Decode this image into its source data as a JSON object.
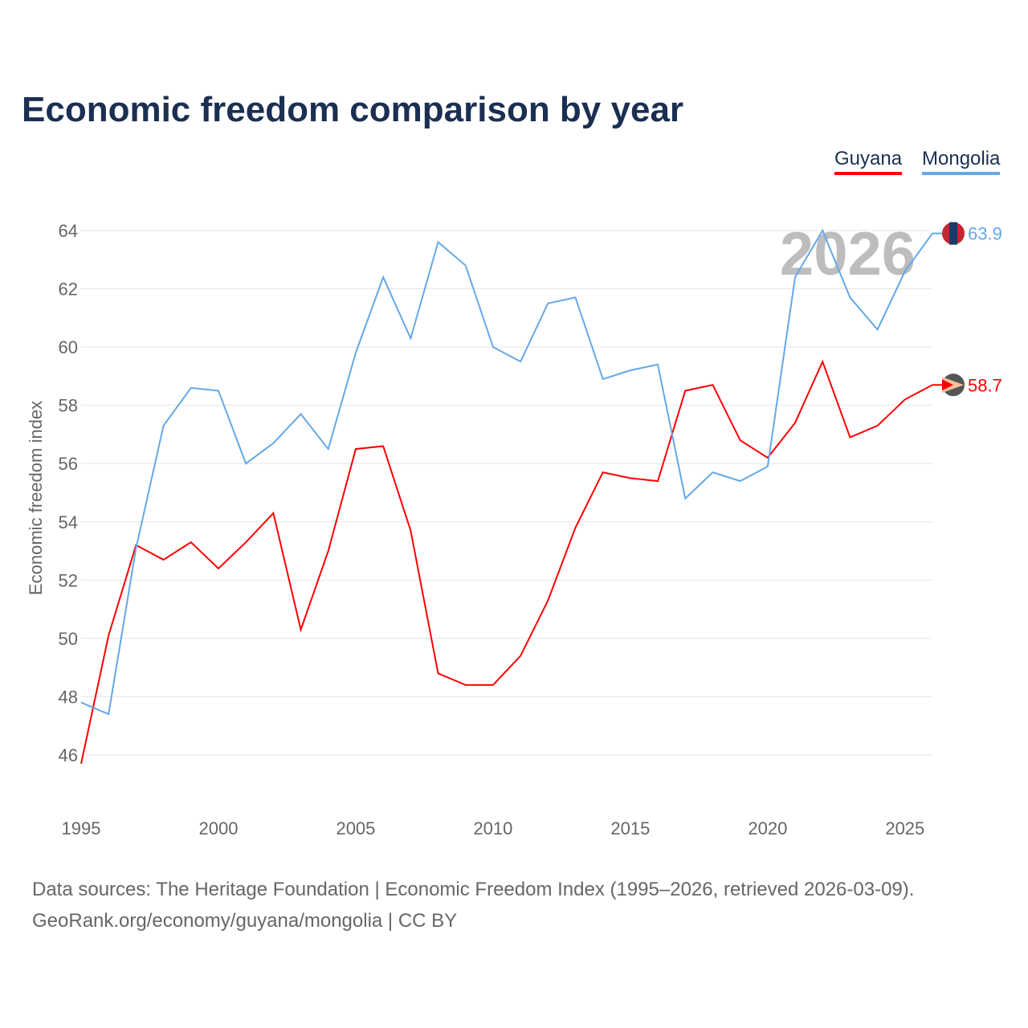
{
  "chart_data": {
    "type": "line",
    "title": "Economic freedom comparison by year",
    "ylabel": "Economic freedom index",
    "xlabel": "",
    "ylim": [
      45,
      65
    ],
    "xlim": [
      1995,
      2026
    ],
    "yticks": [
      46,
      48,
      50,
      52,
      54,
      56,
      58,
      60,
      62,
      64
    ],
    "xticks": [
      1995,
      2000,
      2005,
      2010,
      2015,
      2020,
      2025
    ],
    "grid": true,
    "legend_position": "top-right",
    "watermark_year": "2026",
    "x": [
      1995,
      1996,
      1997,
      1998,
      1999,
      2000,
      2001,
      2002,
      2003,
      2004,
      2005,
      2006,
      2007,
      2008,
      2009,
      2010,
      2011,
      2012,
      2013,
      2014,
      2015,
      2016,
      2017,
      2018,
      2019,
      2020,
      2021,
      2022,
      2023,
      2024,
      2025,
      2026
    ],
    "series": [
      {
        "name": "Guyana",
        "color": "#ff0000",
        "end_label": "58.7",
        "values": [
          45.7,
          50.1,
          53.2,
          52.7,
          53.3,
          52.4,
          53.3,
          54.3,
          50.3,
          53.0,
          56.5,
          56.6,
          53.7,
          48.8,
          48.4,
          48.4,
          49.4,
          51.3,
          53.8,
          55.7,
          55.5,
          55.4,
          58.5,
          58.7,
          56.8,
          56.2,
          57.4,
          59.5,
          56.9,
          57.3,
          58.2,
          58.7
        ]
      },
      {
        "name": "Mongolia",
        "color": "#64a8e8",
        "end_label": "63.9",
        "values": [
          47.8,
          47.4,
          53.1,
          57.3,
          58.6,
          58.5,
          56.0,
          56.7,
          57.7,
          56.5,
          59.8,
          62.4,
          60.3,
          63.6,
          62.8,
          60.0,
          59.5,
          61.5,
          61.7,
          58.9,
          59.2,
          59.4,
          54.8,
          55.7,
          55.4,
          55.9,
          62.4,
          64.0,
          61.7,
          60.6,
          62.6,
          63.9
        ]
      }
    ]
  },
  "footer": {
    "line1": "Data sources: The Heritage Foundation | Economic Freedom Index (1995–2026, retrieved 2026-03-09).",
    "line2": "GeoRank.org/economy/guyana/mongolia | CC BY"
  }
}
